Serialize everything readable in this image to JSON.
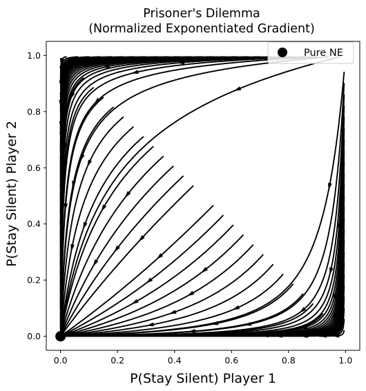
{
  "chart_data": {
    "type": "streamplot",
    "title_lines": [
      "Prisoner's Dilemma",
      "(Normalized Exponentiated Gradient)"
    ],
    "xlabel": "P(Stay Silent) Player 1",
    "ylabel": "P(Stay Silent) Player 2",
    "xlim": [
      -0.05,
      1.05
    ],
    "ylim": [
      -0.05,
      1.05
    ],
    "xticks": [
      "0.0",
      "0.2",
      "0.4",
      "0.6",
      "0.8",
      "1.0"
    ],
    "yticks": [
      "0.0",
      "0.2",
      "0.4",
      "0.6",
      "0.8",
      "1.0"
    ],
    "xtick_values": [
      0,
      0.2,
      0.4,
      0.6,
      0.8,
      1.0
    ],
    "ytick_values": [
      0,
      0.2,
      0.4,
      0.6,
      0.8,
      1.0
    ],
    "stream_color": "#000000",
    "legend": {
      "label": "Pure NE",
      "position": "top-right"
    },
    "nash_equilibria": [
      {
        "x": 0.0,
        "y": 0.0,
        "label": "Pure NE"
      }
    ],
    "vector_field": "Normalized exponentiated gradient dynamics; all flow converges to (0, 0)"
  }
}
